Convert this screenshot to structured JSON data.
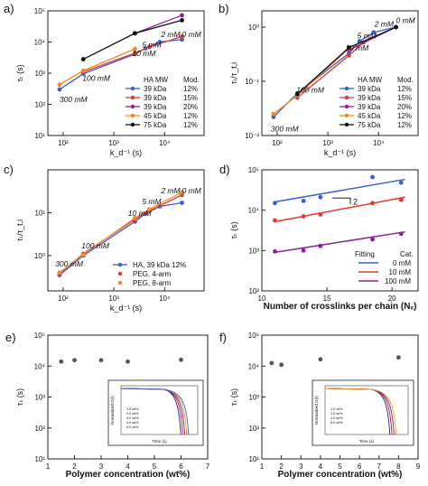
{
  "chart_data": [
    {
      "panel": "a)",
      "type": "line",
      "xlabel": "k_d^-1 (s)",
      "ylabel": "τ_t (s)",
      "xscale": "log",
      "yscale": "log",
      "xlim": [
        50,
        60000
      ],
      "ylim": [
        10,
        100000
      ],
      "xticks": [
        [
          100,
          "10²"
        ],
        [
          1000,
          "10³"
        ],
        [
          10000,
          "10⁴"
        ]
      ],
      "yticks": [
        [
          10,
          "10¹"
        ],
        [
          100,
          "10²"
        ],
        [
          1000,
          "10³"
        ],
        [
          10000,
          "10⁴"
        ],
        [
          100000,
          "10⁵"
        ]
      ],
      "annotations": [
        {
          "text": "300 mM",
          "x": 85,
          "y": 120
        },
        {
          "text": "100 mM",
          "x": 240,
          "y": 560
        },
        {
          "text": "10 mM",
          "x": 2300,
          "y": 3600
        },
        {
          "text": "5 mM",
          "x": 3600,
          "y": 6600
        },
        {
          "text": "2 mM",
          "x": 8500,
          "y": 14500
        },
        {
          "text": "0 mM",
          "x": 22000,
          "y": 14500
        }
      ],
      "legend": {
        "headers": [
          "HA MW",
          "Mod."
        ],
        "entries": [
          [
            "39 kDa",
            "12%"
          ],
          [
            "39 kDa",
            "15%"
          ],
          [
            "39 kDa",
            "20%"
          ],
          [
            "45 kDa",
            "12%"
          ],
          [
            "75 kDa",
            "12%"
          ]
        ]
      },
      "series": [
        {
          "color": "#3a5fcd",
          "x": [
            85,
            250,
            2600,
            4200,
            8000,
            22000
          ],
          "y": [
            300,
            960,
            4100,
            6200,
            10000,
            12000
          ]
        },
        {
          "color": "#e23a2f",
          "x": [
            250,
            2600,
            5000,
            22000
          ],
          "y": [
            1100,
            4400,
            6900,
            15000
          ]
        },
        {
          "color": "#8e1f9a",
          "x": [
            2600,
            22000
          ],
          "y": [
            19000,
            72000
          ]
        },
        {
          "color": "#f58a1f",
          "x": [
            85,
            250,
            2600
          ],
          "y": [
            430,
            1200,
            6000
          ]
        },
        {
          "color": "#111111",
          "x": [
            250,
            2600,
            22000
          ],
          "y": [
            2800,
            19000,
            50000
          ]
        }
      ]
    },
    {
      "panel": "b)",
      "type": "line",
      "xlabel": "k_d^-1 (s)",
      "ylabel": "τ_t/τ_t,i",
      "xscale": "log",
      "yscale": "log",
      "xlim": [
        50,
        60000
      ],
      "ylim": [
        0.01,
        2
      ],
      "xticks": [
        [
          100,
          "10²"
        ],
        [
          1000,
          "10³"
        ],
        [
          10000,
          "10⁴"
        ]
      ],
      "yticks": [
        [
          0.01,
          "10⁻²"
        ],
        [
          0.1,
          "10⁻¹"
        ],
        [
          1,
          "10⁰"
        ]
      ],
      "annotations": [
        {
          "text": "300 mM",
          "x": 75,
          "y": 0.012
        },
        {
          "text": "100 mM",
          "x": 240,
          "y": 0.062
        },
        {
          "text": "10 mM",
          "x": 2200,
          "y": 0.37
        },
        {
          "text": "5 mM",
          "x": 3800,
          "y": 0.62
        },
        {
          "text": "2 mM",
          "x": 8300,
          "y": 1.02
        },
        {
          "text": "0 mM",
          "x": 22000,
          "y": 1.18
        }
      ],
      "legend": {
        "headers": [
          "HA MW",
          "Mod."
        ],
        "entries": [
          [
            "39 kDa",
            "12%"
          ],
          [
            "39 kDa",
            "15%"
          ],
          [
            "39 kDa",
            "20%"
          ],
          [
            "45 kDa",
            "12%"
          ],
          [
            "75 kDa",
            "12%"
          ]
        ]
      },
      "series": [
        {
          "color": "#3a5fcd",
          "x": [
            85,
            250,
            2600,
            4200,
            8000,
            22000
          ],
          "y": [
            0.022,
            0.06,
            0.33,
            0.55,
            0.8,
            1.0
          ]
        },
        {
          "color": "#e23a2f",
          "x": [
            250,
            2600,
            5000,
            22000
          ],
          "y": [
            0.05,
            0.3,
            0.52,
            1.0
          ]
        },
        {
          "color": "#8e1f9a",
          "x": [
            2600,
            22000
          ],
          "y": [
            0.38,
            1.0
          ]
        },
        {
          "color": "#f58a1f",
          "x": [
            85,
            250,
            2600
          ],
          "y": [
            0.025,
            0.055,
            0.4
          ]
        },
        {
          "color": "#111111",
          "x": [
            250,
            2600,
            22000
          ],
          "y": [
            0.058,
            0.42,
            1.0
          ]
        }
      ]
    },
    {
      "panel": "c)",
      "type": "line",
      "xlabel": "k_d^-1 (s)",
      "ylabel": "τ_t/τ_t,i",
      "xscale": "log",
      "yscale": "log",
      "xlim": [
        50,
        60000
      ],
      "ylim": [
        0.15,
        100
      ],
      "xticks": [
        [
          100,
          "10²"
        ],
        [
          1000,
          "10³"
        ],
        [
          10000,
          "10⁴"
        ]
      ],
      "yticks": [
        [
          1,
          "10⁰"
        ],
        [
          10,
          "10¹"
        ]
      ],
      "annotations": [
        {
          "text": "300 mM",
          "x": 70,
          "y": 0.55
        },
        {
          "text": "100 mM",
          "x": 230,
          "y": 1.45
        },
        {
          "text": "10 mM",
          "x": 1900,
          "y": 8.5
        },
        {
          "text": "5 mM",
          "x": 3600,
          "y": 16
        },
        {
          "text": "2 mM",
          "x": 8500,
          "y": 28
        },
        {
          "text": "0 mM",
          "x": 22000,
          "y": 28
        }
      ],
      "legend": {
        "entries": [
          "HA, 39 kDa 12%",
          "PEG, 4-arm",
          "PEG, 8-arm"
        ]
      },
      "series": [
        {
          "color": "#3a5fcd",
          "x": [
            85,
            250,
            2600,
            4200,
            8000,
            22000
          ],
          "y": [
            0.35,
            1.0,
            6.2,
            9.5,
            14,
            17
          ]
        },
        {
          "color": "#e23a2f",
          "x": [
            85,
            250,
            2600,
            5000,
            22000
          ],
          "y": [
            0.38,
            1.1,
            7.0,
            11,
            26
          ]
        },
        {
          "color": "#f58a1f",
          "x": [
            85,
            250,
            2600,
            5000,
            22000
          ],
          "y": [
            0.4,
            1.05,
            7.5,
            12,
            30
          ]
        }
      ]
    },
    {
      "panel": "d)",
      "type": "scatter",
      "xlabel": "Number of crosslinks per chain (N_x)",
      "ylabel": "τ_t (s)",
      "yscale": "log",
      "xlim": [
        10,
        22
      ],
      "ylim": [
        100,
        100000
      ],
      "xticks": [
        [
          10,
          "10"
        ],
        [
          15,
          "15"
        ],
        [
          20,
          "20"
        ]
      ],
      "yticks": [
        [
          100,
          "10²"
        ],
        [
          1000,
          "10³"
        ],
        [
          10000,
          "10⁴"
        ],
        [
          100000,
          "10⁵"
        ]
      ],
      "slope_label": "2",
      "legend": {
        "headers": [
          "Fitting",
          "Cat."
        ],
        "entries": [
          "0 mM",
          "10 mM",
          "100 mM"
        ]
      },
      "series": [
        {
          "color": "#3a5fcd",
          "x": [
            11,
            13.2,
            14.5,
            18.5,
            20.7
          ],
          "y": [
            15000,
            17000,
            21000,
            66000,
            48000
          ]
        },
        {
          "color": "#e23a2f",
          "x": [
            11,
            13.2,
            14.5,
            18.5,
            20.7
          ],
          "y": [
            5600,
            7000,
            7800,
            15000,
            18000
          ]
        },
        {
          "color": "#8e1f9a",
          "x": [
            11,
            13.2,
            14.5,
            18.5,
            20.7
          ],
          "y": [
            950,
            1000,
            1300,
            1900,
            2600
          ]
        }
      ],
      "fits": [
        {
          "color": "#3a5fcd",
          "x": [
            11,
            21
          ],
          "y": [
            16000,
            58000
          ]
        },
        {
          "color": "#e23a2f",
          "x": [
            11,
            21
          ],
          "y": [
            5200,
            21000
          ]
        },
        {
          "color": "#8e1f9a",
          "x": [
            11,
            21
          ],
          "y": [
            900,
            2900
          ]
        }
      ]
    },
    {
      "panel": "e)",
      "type": "scatter",
      "xlabel": "Polymer concentration (wt%)",
      "ylabel": "τ_t (s)",
      "yscale": "log",
      "xlim": [
        1,
        7
      ],
      "ylim": [
        10,
        100000
      ],
      "xticks": [
        [
          1,
          "1"
        ],
        [
          2,
          "2"
        ],
        [
          3,
          "3"
        ],
        [
          4,
          "4"
        ],
        [
          5,
          "5"
        ],
        [
          6,
          "6"
        ],
        [
          7,
          "7"
        ]
      ],
      "yticks": [
        [
          10,
          "10¹"
        ],
        [
          100,
          "10²"
        ],
        [
          1000,
          "10³"
        ],
        [
          10000,
          "10⁴"
        ],
        [
          100000,
          "10⁵"
        ]
      ],
      "series": [
        {
          "color": "#555555",
          "x": [
            1.5,
            2.0,
            3.0,
            4.0,
            6.0
          ],
          "y": [
            14000,
            15500,
            15500,
            14000,
            16000
          ]
        }
      ],
      "inset": {
        "xlabel": "Time (s)",
        "ylabel": "Normalized G(t)",
        "legend": [
          "1.5 wt%",
          "2.0 wt%",
          "3.0 wt%",
          "4.0 wt%",
          "6.0 wt%"
        ]
      }
    },
    {
      "panel": "f)",
      "type": "scatter",
      "xlabel": "Polymer concentration (wt%)",
      "ylabel": "τ_t (s)",
      "yscale": "log",
      "xlim": [
        1,
        9
      ],
      "ylim": [
        10,
        100000
      ],
      "xticks": [
        [
          1,
          "1"
        ],
        [
          2,
          "2"
        ],
        [
          3,
          "3"
        ],
        [
          4,
          "4"
        ],
        [
          5,
          "5"
        ],
        [
          6,
          "6"
        ],
        [
          7,
          "7"
        ],
        [
          8,
          "8"
        ],
        [
          9,
          "9"
        ]
      ],
      "yticks": [
        [
          10,
          "10¹"
        ],
        [
          100,
          "10²"
        ],
        [
          1000,
          "10³"
        ],
        [
          10000,
          "10⁴"
        ],
        [
          100000,
          "10⁵"
        ]
      ],
      "series": [
        {
          "color": "#555555",
          "x": [
            1.5,
            2.0,
            4.0,
            8.0
          ],
          "y": [
            12500,
            11000,
            16500,
            19000
          ]
        }
      ],
      "inset": {
        "xlabel": "Time (s)",
        "ylabel": "Normalized G(t)",
        "legend": [
          "1.5 wt%",
          "2.0 wt%",
          "4.0 wt%",
          "8.0 wt%"
        ]
      }
    }
  ]
}
